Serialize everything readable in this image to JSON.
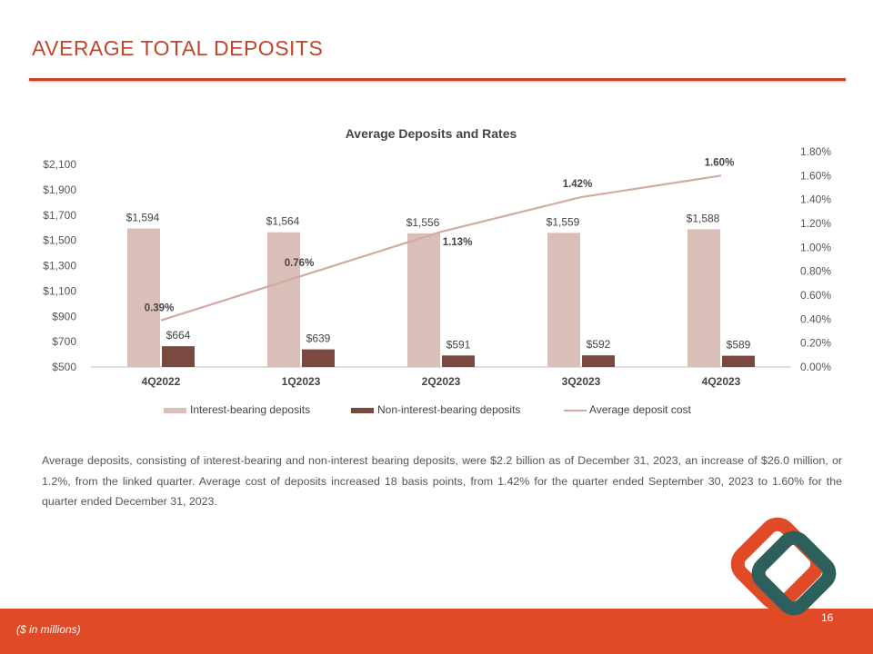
{
  "slide": {
    "title": "AVERAGE TOTAL DEPOSITS",
    "paragraph": "Average deposits, consisting of interest-bearing and non-interest bearing deposits, were $2.2 billion as of December 31, 2023, an increase of $26.0 million, or 1.2%, from the linked quarter. Average cost of deposits increased 18 basis points, from 1.42% for the quarter ended September 30, 2023 to 1.60% for the quarter ended December 31, 2023.",
    "footer_note": "($ in millions)",
    "page_number": "16"
  },
  "colors": {
    "accent": "#c0462a",
    "footer": "#e04a27",
    "interest_bar": "#d9bfb7",
    "non_interest_bar": "#7a4a40",
    "rate_line": "#d4aaa3",
    "logo_teal": "#2d5f5d",
    "logo_orange": "#e04a27"
  },
  "chart_data": {
    "type": "bar",
    "title": "Average Deposits and Rates",
    "categories": [
      "4Q2022",
      "1Q2023",
      "2Q2023",
      "3Q2023",
      "4Q2023"
    ],
    "series": [
      {
        "name": "Interest-bearing deposits",
        "type": "bar",
        "axis": "left",
        "values": [
          1594,
          1564,
          1556,
          1559,
          1588
        ],
        "labels": [
          "$1,594",
          "$1,564",
          "$1,556",
          "$1,559",
          "$1,588"
        ]
      },
      {
        "name": "Non-interest-bearing deposits",
        "type": "bar",
        "axis": "left",
        "values": [
          664,
          639,
          591,
          592,
          589
        ],
        "labels": [
          "$664",
          "$639",
          "$591",
          "$592",
          "$589"
        ]
      },
      {
        "name": "Average deposit cost",
        "type": "line",
        "axis": "right",
        "values": [
          0.39,
          0.76,
          1.13,
          1.42,
          1.6
        ],
        "labels": [
          "0.39%",
          "0.76%",
          "1.13%",
          "1.42%",
          "1.60%"
        ]
      }
    ],
    "y_left": {
      "ylim": [
        500,
        2100
      ],
      "ticks": [
        500,
        700,
        900,
        1100,
        1300,
        1500,
        1700,
        1900,
        2100
      ],
      "tick_labels": [
        "$500",
        "$700",
        "$900",
        "$1,100",
        "$1,300",
        "$1,500",
        "$1,700",
        "$1,900",
        "$2,100"
      ]
    },
    "y_right": {
      "ylim": [
        0,
        1.8
      ],
      "ticks": [
        0,
        0.2,
        0.4,
        0.6,
        0.8,
        1.0,
        1.2,
        1.4,
        1.6,
        1.8
      ],
      "tick_labels": [
        "0.00%",
        "0.20%",
        "0.40%",
        "0.60%",
        "0.80%",
        "1.00%",
        "1.20%",
        "1.40%",
        "1.60%",
        "1.80%"
      ]
    },
    "grid": false,
    "legend": "bottom"
  }
}
